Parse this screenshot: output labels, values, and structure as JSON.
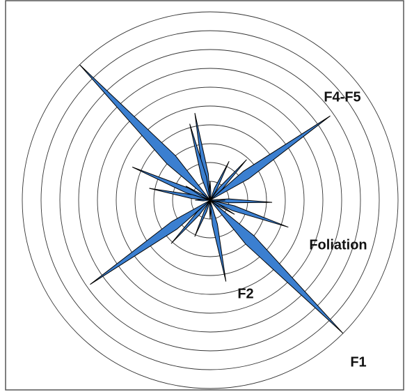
{
  "chart_data": {
    "type": "rose",
    "directions": [
      316,
      135,
      55,
      235,
      350,
      345,
      169,
      293,
      281,
      109,
      92,
      42,
      26,
      222,
      203,
      300,
      120,
      180,
      0,
      270,
      90
    ],
    "values": [
      10,
      10,
      7.8,
      7.8,
      4.7,
      4.2,
      4.4,
      4.5,
      3.3,
      4.4,
      3.3,
      2.9,
      2.3,
      3.1,
      2.1,
      1.5,
      1.5,
      1,
      1,
      0.8,
      0.8
    ],
    "color": "#3b7fd0",
    "rlim": [
      0,
      10
    ],
    "rticks": [
      1,
      2,
      3,
      4,
      5,
      6,
      7,
      8,
      9,
      10
    ],
    "grid": true,
    "annotations": [
      {
        "text": "F4-F5"
      },
      {
        "text": "Foliation"
      },
      {
        "text": "F2"
      },
      {
        "text": "F1"
      }
    ]
  }
}
